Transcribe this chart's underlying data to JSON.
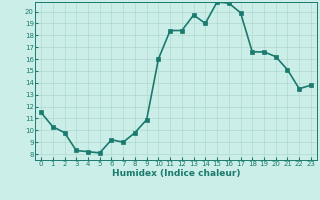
{
  "x": [
    0,
    1,
    2,
    3,
    4,
    5,
    6,
    7,
    8,
    9,
    10,
    11,
    12,
    13,
    14,
    15,
    16,
    17,
    18,
    19,
    20,
    21,
    22,
    23
  ],
  "y": [
    11.5,
    10.3,
    9.8,
    8.3,
    8.2,
    8.1,
    9.2,
    9.0,
    9.8,
    10.9,
    16.0,
    18.4,
    18.4,
    19.7,
    19.0,
    20.8,
    20.7,
    19.9,
    16.6,
    16.6,
    16.2,
    15.1,
    13.5,
    13.8
  ],
  "line_color": "#1a7a6e",
  "marker_color": "#1a7a6e",
  "bg_color": "#cceee8",
  "grid_color": "#b0d8d2",
  "xlabel": "Humidex (Indice chaleur)",
  "xlim": [
    -0.5,
    23.5
  ],
  "ylim": [
    7.5,
    20.8
  ],
  "yticks": [
    8,
    9,
    10,
    11,
    12,
    13,
    14,
    15,
    16,
    17,
    18,
    19,
    20
  ],
  "xticks": [
    0,
    1,
    2,
    3,
    4,
    5,
    6,
    7,
    8,
    9,
    10,
    11,
    12,
    13,
    14,
    15,
    16,
    17,
    18,
    19,
    20,
    21,
    22,
    23
  ],
  "font_color": "#1a7a6e",
  "marker_size": 2.5,
  "line_width": 1.2
}
